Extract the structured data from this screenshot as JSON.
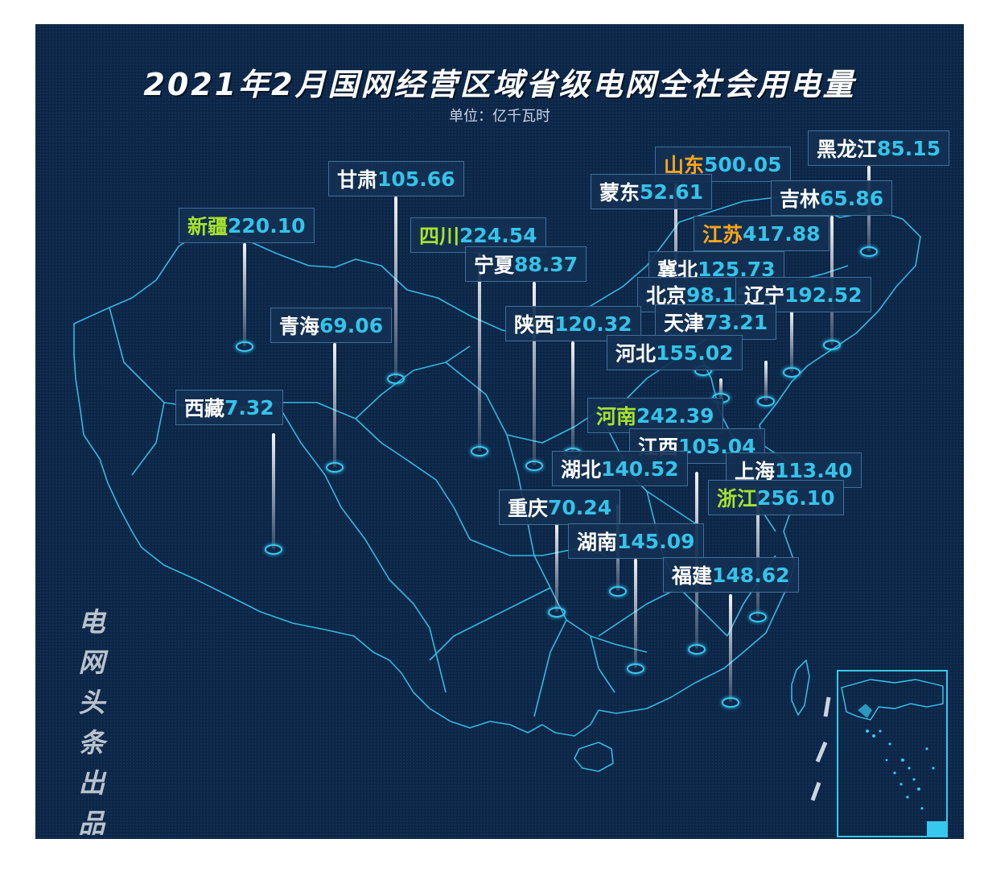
{
  "title": "2021年2月国网经营区域省级电网全社会用电量",
  "unit": "单位：亿千瓦时",
  "side_text": "电网头条出品",
  "colors": {
    "background": "#0c2647",
    "value": "#35c3ea",
    "name": "#ffffff",
    "highlight_green": "#a6e22e",
    "highlight_orange": "#ffa51a",
    "border": "#37c8f0"
  },
  "provinces": [
    {
      "name": "黑龙江",
      "value": "85.15",
      "highlight": "none"
    },
    {
      "name": "山东",
      "value": "500.05",
      "highlight": "orange"
    },
    {
      "name": "蒙东",
      "value": "52.61",
      "highlight": "none"
    },
    {
      "name": "吉林",
      "value": "65.86",
      "highlight": "none"
    },
    {
      "name": "甘肃",
      "value": "105.66",
      "highlight": "none"
    },
    {
      "name": "新疆",
      "value": "220.10",
      "highlight": "green"
    },
    {
      "name": "四川",
      "value": "224.54",
      "highlight": "green"
    },
    {
      "name": "江苏",
      "value": "417.88",
      "highlight": "orange"
    },
    {
      "name": "宁夏",
      "value": "88.37",
      "highlight": "none"
    },
    {
      "name": "冀北",
      "value": "125.73",
      "highlight": "none"
    },
    {
      "name": "北京",
      "value": "98.15",
      "highlight": "none"
    },
    {
      "name": "辽宁",
      "value": "192.52",
      "highlight": "none"
    },
    {
      "name": "青海",
      "value": "69.06",
      "highlight": "none"
    },
    {
      "name": "陕西",
      "value": "120.32",
      "highlight": "none"
    },
    {
      "name": "天津",
      "value": "73.21",
      "highlight": "none"
    },
    {
      "name": "河北",
      "value": "155.02",
      "highlight": "none"
    },
    {
      "name": "西藏",
      "value": "7.32",
      "highlight": "none"
    },
    {
      "name": "河南",
      "value": "242.39",
      "highlight": "green"
    },
    {
      "name": "江西",
      "value": "105.04",
      "highlight": "none"
    },
    {
      "name": "湖北",
      "value": "140.52",
      "highlight": "none"
    },
    {
      "name": "上海",
      "value": "113.40",
      "highlight": "none"
    },
    {
      "name": "浙江",
      "value": "256.10",
      "highlight": "green"
    },
    {
      "name": "重庆",
      "value": "70.24",
      "highlight": "none"
    },
    {
      "name": "湖南",
      "value": "145.09",
      "highlight": "none"
    },
    {
      "name": "福建",
      "value": "148.62",
      "highlight": "none"
    }
  ]
}
